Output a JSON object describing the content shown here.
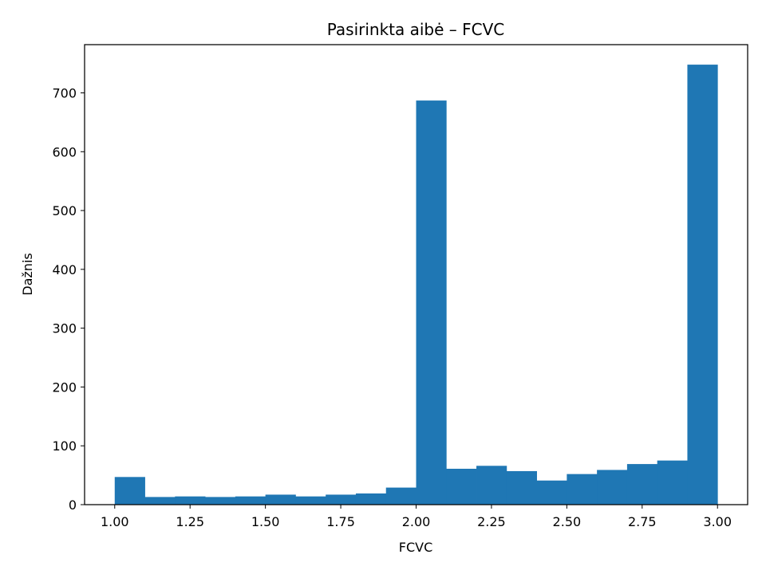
{
  "chart_data": {
    "type": "bar",
    "title": "Pasirinkta aibė – FCVC",
    "xlabel": "FCVC",
    "ylabel": "Dažnis",
    "xlim": [
      0.9,
      3.1
    ],
    "ylim": [
      0,
      782
    ],
    "xticks": [
      1.0,
      1.25,
      1.5,
      1.75,
      2.0,
      2.25,
      2.5,
      2.75,
      3.0
    ],
    "xtick_labels": [
      "1.00",
      "1.25",
      "1.50",
      "1.75",
      "2.00",
      "2.25",
      "2.50",
      "2.75",
      "3.00"
    ],
    "yticks": [
      0,
      100,
      200,
      300,
      400,
      500,
      600,
      700
    ],
    "ytick_labels": [
      "0",
      "100",
      "200",
      "300",
      "400",
      "500",
      "600",
      "700"
    ],
    "bin_edges": [
      1.0,
      1.1,
      1.2,
      1.3,
      1.4,
      1.5,
      1.6,
      1.7,
      1.8,
      1.9,
      2.0,
      2.1,
      2.2,
      2.3,
      2.4,
      2.5,
      2.6,
      2.7,
      2.8,
      2.9,
      3.0
    ],
    "values": [
      47,
      13,
      14,
      13,
      14,
      17,
      14,
      17,
      19,
      29,
      687,
      61,
      66,
      57,
      41,
      52,
      59,
      69,
      75,
      748
    ],
    "bar_color": "#1f77b4",
    "grid": false,
    "legend": "none"
  }
}
